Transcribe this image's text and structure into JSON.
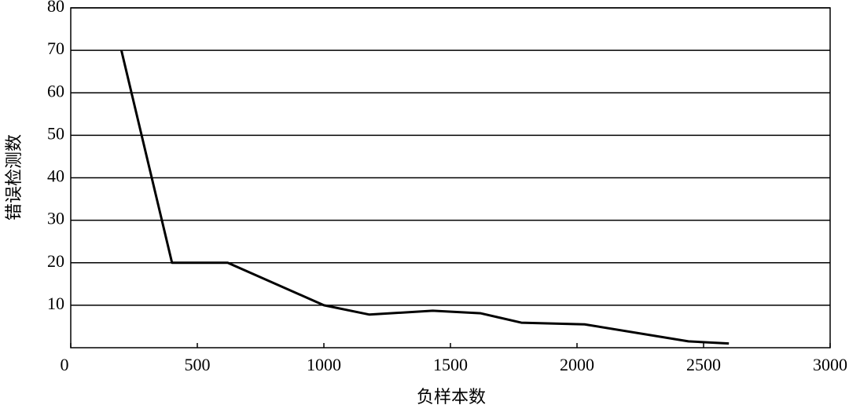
{
  "chart_data": {
    "type": "line",
    "x_label": "负样本数",
    "y_label": "错误检测数",
    "x": [
      200,
      400,
      620,
      1000,
      1180,
      1430,
      1620,
      1780,
      2030,
      2440,
      2600
    ],
    "series": [
      {
        "color": "#000000",
        "values": [
          70,
          20,
          20,
          10,
          7.8,
          8.7,
          8.1,
          5.9,
          5.5,
          1.5,
          1
        ]
      }
    ],
    "xlim": [
      0,
      3000
    ],
    "xticks": [
      0,
      500,
      1000,
      1500,
      2000,
      2500,
      3000
    ],
    "ylim": [
      0,
      80
    ],
    "yticks": [
      10,
      20,
      30,
      40,
      50,
      60,
      70,
      80
    ],
    "grid": true
  }
}
